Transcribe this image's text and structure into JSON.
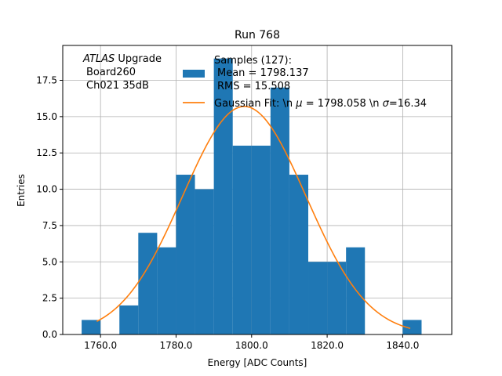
{
  "chart_data": {
    "type": "histogram",
    "title": "Run 768",
    "xlabel": "Energy [ADC Counts]",
    "ylabel": "Entries",
    "xlim": [
      1750,
      1853
    ],
    "ylim": [
      0,
      19.9
    ],
    "grid": true,
    "xticks": [
      1760,
      1780,
      1800,
      1820,
      1840
    ],
    "xtick_labels": [
      "1760.0",
      "1780.0",
      "1800.0",
      "1820.0",
      "1840.0"
    ],
    "yticks": [
      0,
      2.5,
      5,
      7.5,
      10,
      12.5,
      15,
      17.5
    ],
    "ytick_labels": [
      "0.0",
      "2.5",
      "5.0",
      "7.5",
      "10.0",
      "12.5",
      "15.0",
      "17.5"
    ],
    "bins": [
      {
        "from": 1755,
        "to": 1760,
        "count": 1
      },
      {
        "from": 1760,
        "to": 1765,
        "count": 0
      },
      {
        "from": 1765,
        "to": 1770,
        "count": 2
      },
      {
        "from": 1770,
        "to": 1775,
        "count": 7
      },
      {
        "from": 1775,
        "to": 1780,
        "count": 6
      },
      {
        "from": 1780,
        "to": 1785,
        "count": 11
      },
      {
        "from": 1785,
        "to": 1790,
        "count": 10
      },
      {
        "from": 1790,
        "to": 1795,
        "count": 19
      },
      {
        "from": 1795,
        "to": 1800,
        "count": 13
      },
      {
        "from": 1800,
        "to": 1805,
        "count": 13
      },
      {
        "from": 1805,
        "to": 1810,
        "count": 17
      },
      {
        "from": 1810,
        "to": 1815,
        "count": 11
      },
      {
        "from": 1815,
        "to": 1820,
        "count": 5
      },
      {
        "from": 1820,
        "to": 1825,
        "count": 5
      },
      {
        "from": 1825,
        "to": 1830,
        "count": 6
      },
      {
        "from": 1830,
        "to": 1835,
        "count": 0
      },
      {
        "from": 1835,
        "to": 1840,
        "count": 0
      },
      {
        "from": 1840,
        "to": 1845,
        "count": 1
      }
    ],
    "fit": {
      "type": "gaussian",
      "mu": 1798.058,
      "sigma": 16.34,
      "amplitude": 15.7,
      "x_range": [
        1759,
        1842
      ]
    },
    "legend": {
      "placement": "top-center",
      "samples_label": "Samples (127):",
      "mean_label": "Mean = 1798.137",
      "rms_label": "RMS = 15.508",
      "fit_label_prefix": "Gaussian Fit: \\n ",
      "fit_mu_symbol": "μ",
      "fit_mu_value": " = 1798.058 \\n ",
      "fit_sigma_symbol": "σ",
      "fit_sigma_value": "=16.34"
    },
    "annotation": {
      "experiment": "ATLAS",
      "experiment_suffix": " Upgrade",
      "line2": "Board260",
      "line3": "Ch021 35dB"
    },
    "colors": {
      "bars": "#1f77b4",
      "fit": "#ff7f0e",
      "grid": "#b0b0b0"
    }
  }
}
